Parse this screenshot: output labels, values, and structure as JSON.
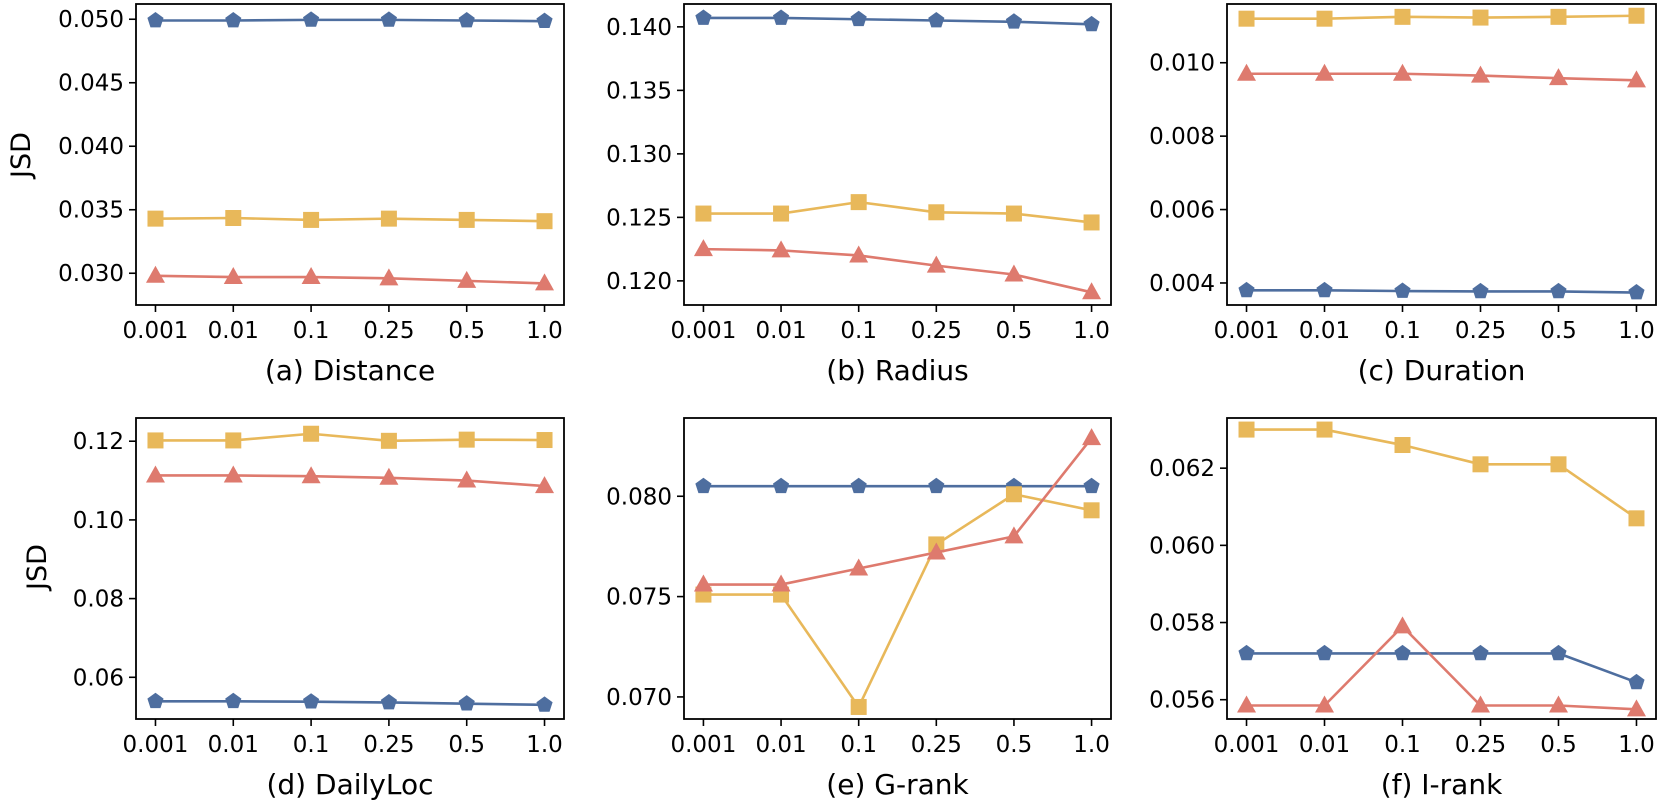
{
  "figure": {
    "ylabel": "JSD",
    "series_styles": [
      {
        "name": "blue",
        "color": "#4e6e9f",
        "marker": "pentagon"
      },
      {
        "name": "yellow",
        "color": "#e8b85a",
        "marker": "square"
      },
      {
        "name": "red",
        "color": "#de7a6e",
        "marker": "triangle"
      }
    ]
  },
  "chart_data": [
    {
      "type": "line",
      "title": "(a) Distance",
      "ylabel": "JSD",
      "categories": [
        "0.001",
        "0.01",
        "0.1",
        "0.25",
        "0.5",
        "1.0"
      ],
      "ylim": [
        0.0275,
        0.0512
      ],
      "yticks": [
        0.03,
        0.035,
        0.04,
        0.045,
        0.05
      ],
      "ytick_labels": [
        "0.030",
        "0.035",
        "0.040",
        "0.045",
        "0.050"
      ],
      "series": [
        {
          "name": "blue",
          "values": [
            0.0499,
            0.0499,
            0.04995,
            0.04995,
            0.0499,
            0.04985
          ]
        },
        {
          "name": "yellow",
          "values": [
            0.0343,
            0.03435,
            0.0342,
            0.0343,
            0.0342,
            0.0341
          ]
        },
        {
          "name": "red",
          "values": [
            0.0298,
            0.0297,
            0.0297,
            0.0296,
            0.0294,
            0.0292
          ]
        }
      ]
    },
    {
      "type": "line",
      "title": "(b) Radius",
      "ylabel": "",
      "categories": [
        "0.001",
        "0.01",
        "0.1",
        "0.25",
        "0.5",
        "1.0"
      ],
      "ylim": [
        0.1181,
        0.1418
      ],
      "yticks": [
        0.12,
        0.125,
        0.13,
        0.135,
        0.14
      ],
      "ytick_labels": [
        "0.120",
        "0.125",
        "0.130",
        "0.135",
        "0.140"
      ],
      "series": [
        {
          "name": "blue",
          "values": [
            0.1407,
            0.1407,
            0.1406,
            0.1405,
            0.1404,
            0.1402
          ]
        },
        {
          "name": "yellow",
          "values": [
            0.1253,
            0.1253,
            0.1262,
            0.1254,
            0.1253,
            0.1246
          ]
        },
        {
          "name": "red",
          "values": [
            0.1225,
            0.1224,
            0.122,
            0.1212,
            0.1205,
            0.1191
          ]
        }
      ]
    },
    {
      "type": "line",
      "title": "(c) Duration",
      "ylabel": "",
      "categories": [
        "0.001",
        "0.01",
        "0.1",
        "0.25",
        "0.5",
        "1.0"
      ],
      "ylim": [
        0.0034,
        0.0116
      ],
      "yticks": [
        0.004,
        0.006,
        0.008,
        0.01
      ],
      "ytick_labels": [
        "0.004",
        "0.006",
        "0.008",
        "0.010"
      ],
      "series": [
        {
          "name": "blue",
          "values": [
            0.0038,
            0.0038,
            0.00378,
            0.00377,
            0.00377,
            0.00374
          ]
        },
        {
          "name": "yellow",
          "values": [
            0.0112,
            0.0112,
            0.01125,
            0.01123,
            0.01125,
            0.01128
          ]
        },
        {
          "name": "red",
          "values": [
            0.0097,
            0.0097,
            0.0097,
            0.00965,
            0.00958,
            0.00952
          ]
        }
      ]
    },
    {
      "type": "line",
      "title": "(d) DailyLoc",
      "ylabel": "JSD",
      "categories": [
        "0.001",
        "0.01",
        "0.1",
        "0.25",
        "0.5",
        "1.0"
      ],
      "ylim": [
        0.0494,
        0.1259
      ],
      "yticks": [
        0.06,
        0.08,
        0.1,
        0.12
      ],
      "ytick_labels": [
        "0.06",
        "0.08",
        "0.10",
        "0.12"
      ],
      "series": [
        {
          "name": "blue",
          "values": [
            0.0539,
            0.0539,
            0.0538,
            0.0536,
            0.0533,
            0.053
          ]
        },
        {
          "name": "yellow",
          "values": [
            0.1202,
            0.1202,
            0.1219,
            0.1201,
            0.1204,
            0.1203
          ]
        },
        {
          "name": "red",
          "values": [
            0.1113,
            0.1113,
            0.1111,
            0.1107,
            0.11,
            0.1086
          ]
        }
      ]
    },
    {
      "type": "line",
      "title": "(e) G-rank",
      "ylabel": "",
      "categories": [
        "0.001",
        "0.01",
        "0.1",
        "0.25",
        "0.5",
        "1.0"
      ],
      "ylim": [
        0.0689,
        0.0839
      ],
      "yticks": [
        0.07,
        0.075,
        0.08
      ],
      "ytick_labels": [
        "0.070",
        "0.075",
        "0.080"
      ],
      "series": [
        {
          "name": "blue",
          "values": [
            0.0805,
            0.0805,
            0.0805,
            0.0805,
            0.0805,
            0.0805
          ]
        },
        {
          "name": "yellow",
          "values": [
            0.0751,
            0.0751,
            0.0695,
            0.0776,
            0.0801,
            0.0793
          ]
        },
        {
          "name": "red",
          "values": [
            0.0756,
            0.0756,
            0.0764,
            0.0772,
            0.078,
            0.0829
          ]
        }
      ]
    },
    {
      "type": "line",
      "title": "(f) I-rank",
      "ylabel": "",
      "categories": [
        "0.001",
        "0.01",
        "0.1",
        "0.25",
        "0.5",
        "1.0"
      ],
      "ylim": [
        0.0555,
        0.0633
      ],
      "yticks": [
        0.056,
        0.058,
        0.06,
        0.062
      ],
      "ytick_labels": [
        "0.056",
        "0.058",
        "0.060",
        "0.062"
      ],
      "series": [
        {
          "name": "blue",
          "values": [
            0.0572,
            0.0572,
            0.0572,
            0.0572,
            0.0572,
            0.05645
          ]
        },
        {
          "name": "yellow",
          "values": [
            0.063,
            0.063,
            0.0626,
            0.0621,
            0.0621,
            0.0607
          ]
        },
        {
          "name": "red",
          "values": [
            0.05585,
            0.05585,
            0.0579,
            0.05585,
            0.05585,
            0.05575
          ]
        }
      ]
    }
  ]
}
